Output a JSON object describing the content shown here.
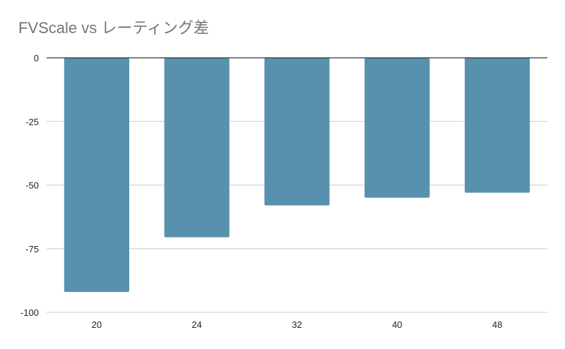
{
  "chart_data": {
    "type": "bar",
    "title": "FVScale vs レーティング差",
    "xlabel": "",
    "ylabel": "",
    "categories": [
      "20",
      "24",
      "32",
      "40",
      "48"
    ],
    "series": [
      {
        "values": [
          -92,
          -70.5,
          -58,
          -55,
          -53
        ],
        "color": "#5891ae"
      }
    ],
    "ylim": [
      -100,
      0
    ],
    "yticks": [
      0,
      -25,
      -50,
      -75,
      -100
    ],
    "ytick_labels": [
      "0",
      "-25",
      "-50",
      "-75",
      "-100"
    ],
    "grid": true,
    "legend": "none",
    "colors": {
      "bar": "#5891ae",
      "grid": "#cccccc",
      "zero_line": "#333333",
      "title": "#757575"
    }
  }
}
